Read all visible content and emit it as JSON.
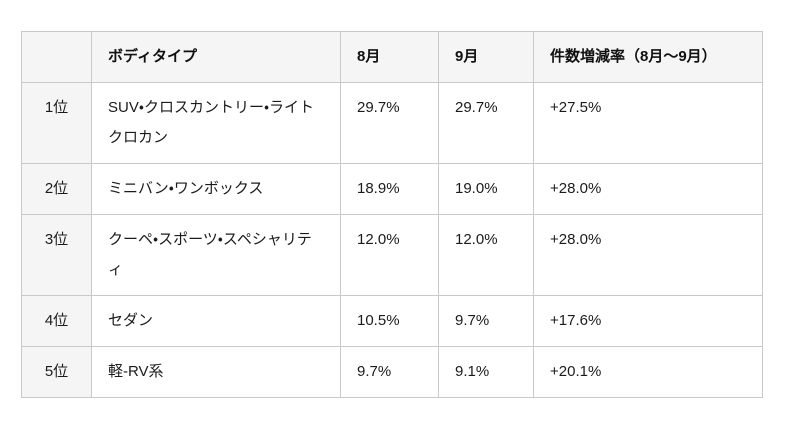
{
  "chart_data": {
    "type": "table",
    "title": "",
    "columns": [
      "",
      "ボディタイプ",
      "8月",
      "9月",
      "件数増減率（8月〜9月）"
    ],
    "rows": [
      [
        "1位",
        "SUV・クロスカントリー・ライトクロカン",
        "29.7%",
        "29.7%",
        "+27.5%"
      ],
      [
        "2位",
        "ミニバン・ワンボックス",
        "18.9%",
        "19.0%",
        "+28.0%"
      ],
      [
        "3位",
        "クーペ・スポーツ・スペシャリティ",
        "12.0%",
        "12.0%",
        "+28.0%"
      ],
      [
        "4位",
        "セダン",
        "10.5%",
        "9.7%",
        "+17.6%"
      ],
      [
        "5位",
        "軽-RV系",
        "9.7%",
        "9.1%",
        "+20.1%"
      ]
    ]
  },
  "colors": {
    "header_background": "#f5f5f5",
    "rank_column_background": "#f5f5f5",
    "border": "#c9c9c9",
    "text": "#1b1b1b",
    "page_background": "#ffffff"
  }
}
